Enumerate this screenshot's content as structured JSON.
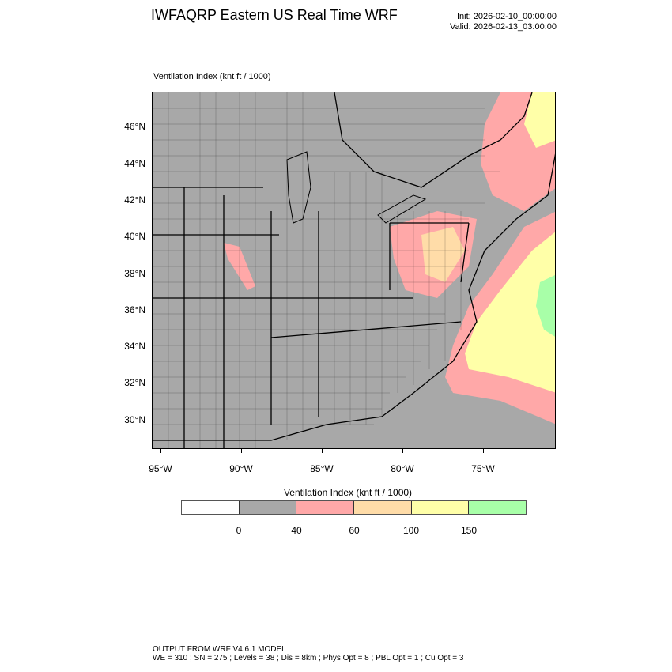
{
  "header": {
    "title": "IWFAQRP Eastern US Real Time WRF",
    "init": "Init: 2026-02-10_00:00:00",
    "valid": "Valid: 2026-02-13_03:00:00"
  },
  "field": {
    "label": "Ventilation Index   (knt ft / 1000)"
  },
  "map": {
    "lat_labels": [
      "46°N",
      "44°N",
      "42°N",
      "40°N",
      "38°N",
      "36°N",
      "34°N",
      "32°N",
      "30°N"
    ],
    "lon_labels": [
      "95°W",
      "90°W",
      "85°W",
      "80°W",
      "75°W"
    ],
    "colors": {
      "land_low": "#a8a8a8",
      "pink": "#ffa8a8",
      "orange": "#ffdca8",
      "yellow": "#ffffa8",
      "green": "#a8ffa8",
      "borders": "#000000"
    }
  },
  "colorbar": {
    "title": "Ventilation Index  (knt ft / 1000)",
    "colors": [
      "#ffffff",
      "#a8a8a8",
      "#ffa8a8",
      "#ffdca8",
      "#ffffa8",
      "#a8ffa8"
    ],
    "labels": [
      "0",
      "40",
      "60",
      "100",
      "150"
    ]
  },
  "footer": {
    "line1": "OUTPUT FROM WRF V4.6.1 MODEL",
    "line2": "WE = 310 ; SN = 275 ; Levels = 38 ; Dis = 8km ; Phys Opt = 8 ; PBL Opt = 1 ; Cu Opt = 3"
  }
}
